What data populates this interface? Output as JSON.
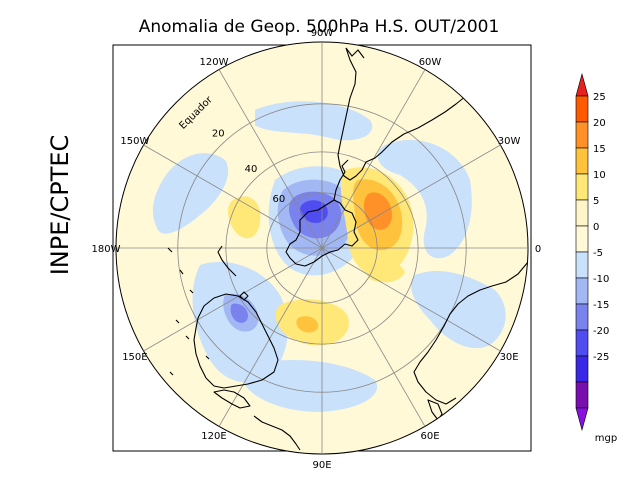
{
  "figure": {
    "title": "Anomalia de Geop. 500hPa H.S. OUT/2001",
    "side_label": "INPE/CPTEC"
  },
  "map": {
    "projection": "polar stereographic, Southern Hemisphere",
    "longitude_labels": [
      {
        "text": "90W",
        "lon": -90
      },
      {
        "text": "60W",
        "lon": -60
      },
      {
        "text": "30W",
        "lon": -30
      },
      {
        "text": "0",
        "lon": 0
      },
      {
        "text": "30E",
        "lon": 30
      },
      {
        "text": "60E",
        "lon": 60
      },
      {
        "text": "90E",
        "lon": 90
      },
      {
        "text": "120E",
        "lon": 120
      },
      {
        "text": "150E",
        "lon": 150
      },
      {
        "text": "180W",
        "lon": 180
      },
      {
        "text": "150W",
        "lon": -150
      },
      {
        "text": "120W",
        "lon": -120
      }
    ],
    "latitude_labels": [
      {
        "text": "Equador",
        "lat": 0
      },
      {
        "text": "20",
        "lat": -20
      },
      {
        "text": "40",
        "lat": -40
      },
      {
        "text": "60",
        "lat": -60
      }
    ]
  },
  "colorbar": {
    "unit": "mgp",
    "levels": [
      25,
      20,
      15,
      10,
      5,
      0,
      -5,
      -10,
      -15,
      -20,
      -25
    ],
    "level_labels": [
      "25",
      "20",
      "15",
      "10",
      "5",
      "0",
      "-5",
      "-10",
      "-15",
      "-20",
      "-25"
    ],
    "colors": [
      "#ff5a00",
      "#ff9128",
      "#ffc23c",
      "#ffe878",
      "#fff5c8",
      "#fff9d8",
      "#c9e1fb",
      "#a2b8f5",
      "#7a82ee",
      "#4f4cf0",
      "#3a28e8",
      "#7a0fb0"
    ],
    "top_arrow_color": "#e8201e",
    "bottom_arrow_color": "#8a0fe0"
  },
  "colors": {
    "background": "#fff9d8",
    "neg5": "#c9e1fb",
    "neg10": "#a2b8f5",
    "neg15": "#7a82ee",
    "neg20": "#4f4cf0",
    "pos5": "#ffe878",
    "pos10": "#ffc23c",
    "pos15": "#ff9128",
    "pos20": "#ff5a00"
  }
}
